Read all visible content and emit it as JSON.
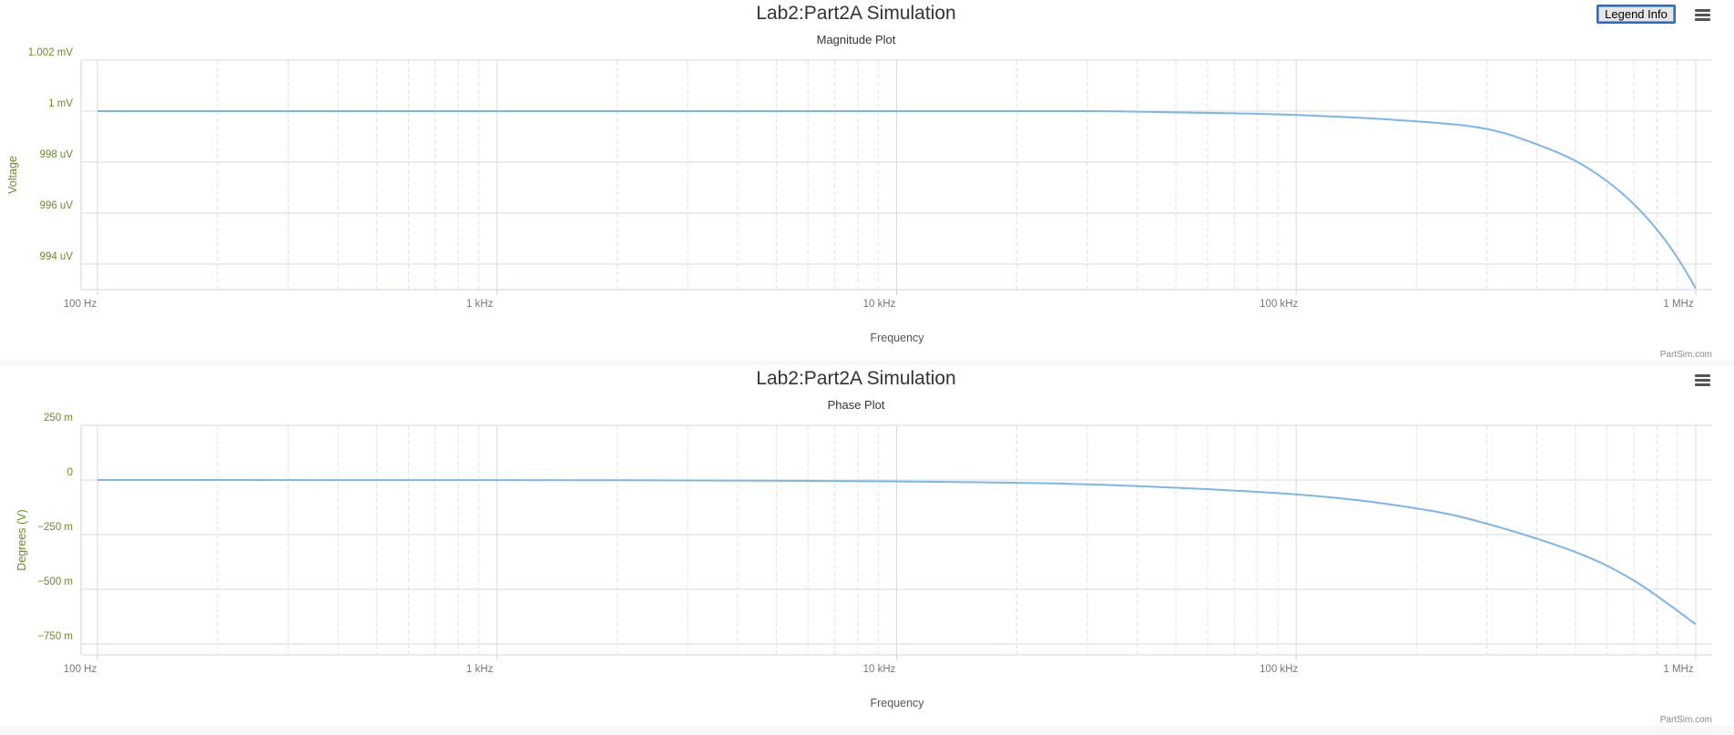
{
  "legend_button": "Legend Info",
  "chart_data": [
    {
      "type": "line",
      "title": "Lab2:Part2A Simulation",
      "subtitle": "Magnitude Plot",
      "xlabel": "Frequency",
      "ylabel": "Voltage",
      "credit": "PartSim.com",
      "xscale": "log",
      "xlim": [
        100,
        1000000
      ],
      "ylim": [
        0.993,
        1.002
      ],
      "yunit": "mV",
      "xticks": [
        100,
        1000,
        10000,
        100000,
        1000000
      ],
      "xtick_labels": [
        "100 Hz",
        "1 kHz",
        "10 kHz",
        "100 kHz",
        "1 MHz"
      ],
      "yticks": [
        1.002,
        1.0,
        0.998,
        0.996,
        0.994
      ],
      "ytick_labels": [
        "1.002 mV",
        "1 mV",
        "998 uV",
        "996 uV",
        "994 uV"
      ],
      "grid": true,
      "series": [
        {
          "color": "#7cb5ec",
          "x": [
            100,
            1000,
            10000,
            30000,
            50000,
            100000,
            200000,
            300000,
            400000,
            500000,
            600000,
            700000,
            800000,
            900000,
            1000000
          ],
          "y": [
            1.0,
            1.0,
            1.0,
            1.0,
            0.99995,
            0.99985,
            0.9996,
            0.9993,
            0.9987,
            0.99805,
            0.99725,
            0.99635,
            0.99535,
            0.99425,
            0.99305
          ]
        }
      ]
    },
    {
      "type": "line",
      "title": "Lab2:Part2A Simulation",
      "subtitle": "Phase Plot",
      "xlabel": "Frequency",
      "ylabel": "Degrees (V)",
      "credit": "PartSim.com",
      "xscale": "log",
      "xlim": [
        100,
        1000000
      ],
      "ylim": [
        -0.8,
        0.25
      ],
      "xticks": [
        100,
        1000,
        10000,
        100000,
        1000000
      ],
      "xtick_labels": [
        "100 Hz",
        "1 kHz",
        "10 kHz",
        "100 kHz",
        "1 MHz"
      ],
      "yticks": [
        0.25,
        0,
        -0.25,
        -0.5,
        -0.75
      ],
      "ytick_labels": [
        "250 m",
        "0",
        "−250 m",
        "−500 m",
        "−750 m"
      ],
      "grid": true,
      "series": [
        {
          "color": "#7cb5ec",
          "x": [
            100,
            1000,
            3000,
            10000,
            30000,
            100000,
            200000,
            300000,
            500000,
            700000,
            1000000
          ],
          "y": [
            0,
            -0.00066,
            -0.002,
            -0.0066,
            -0.02,
            -0.066,
            -0.13,
            -0.2,
            -0.33,
            -0.46,
            -0.66
          ]
        }
      ]
    }
  ]
}
